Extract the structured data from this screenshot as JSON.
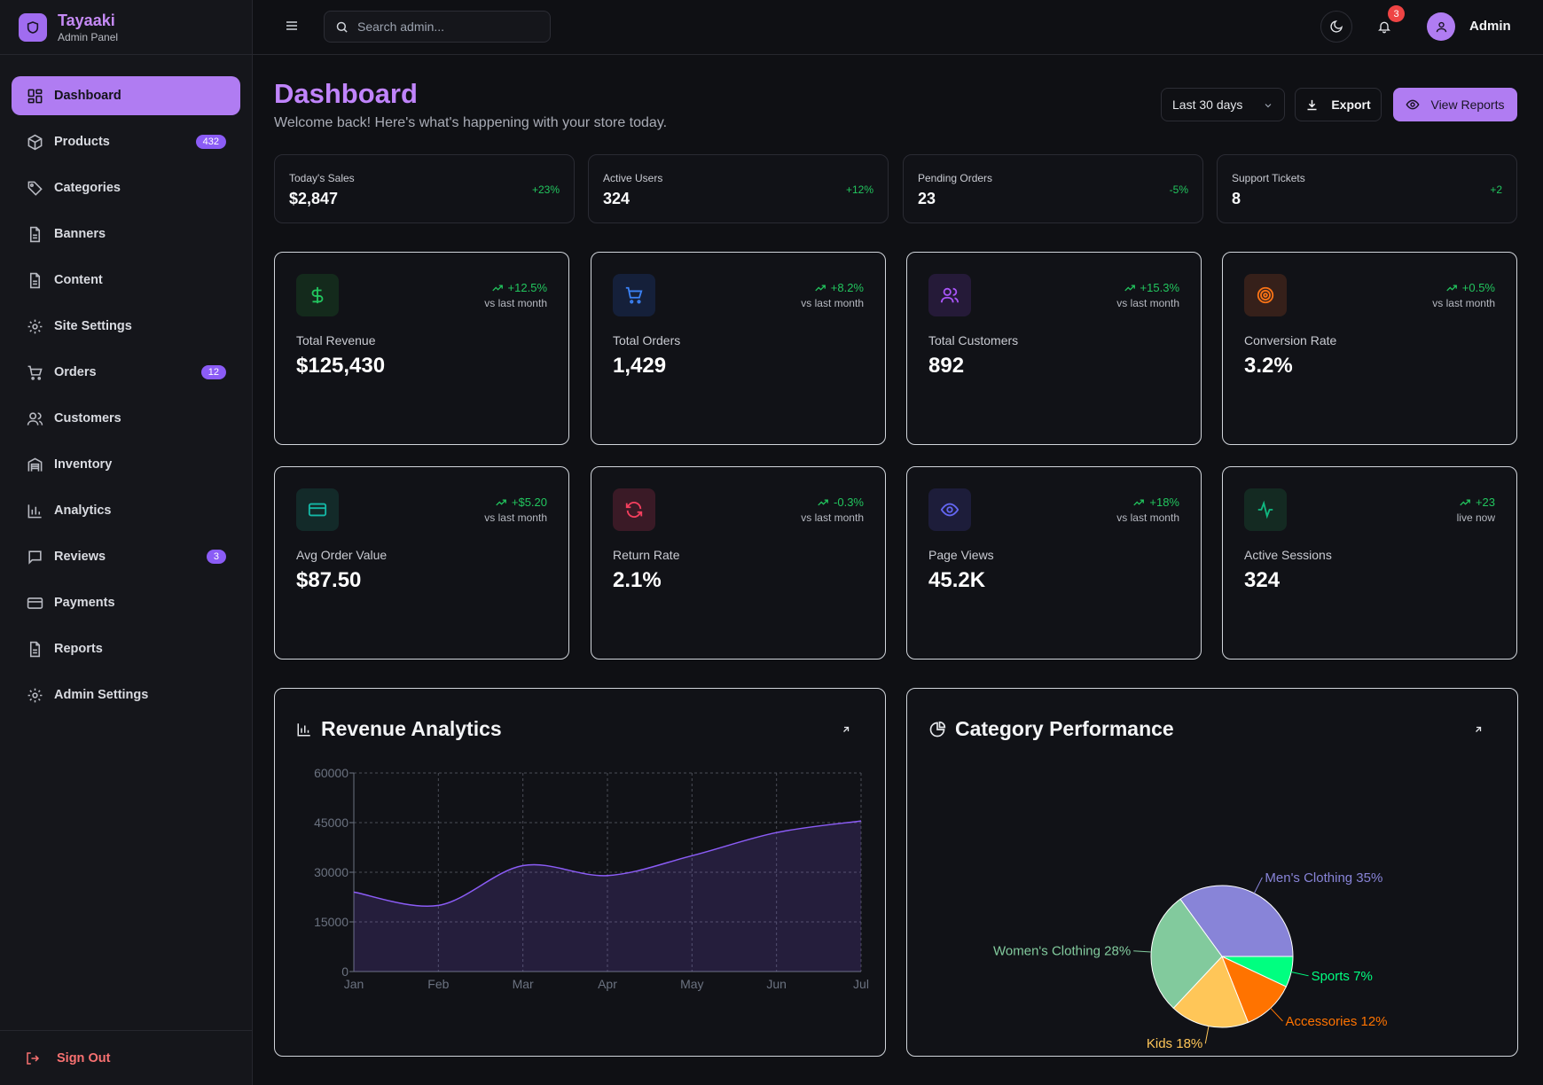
{
  "brand": {
    "name": "Tayaaki",
    "subtitle": "Admin Panel"
  },
  "sidebar": {
    "items": [
      {
        "label": "Dashboard",
        "icon": "dashboard-icon",
        "active": true
      },
      {
        "label": "Products",
        "icon": "box-icon",
        "badge": "432"
      },
      {
        "label": "Categories",
        "icon": "tags-icon"
      },
      {
        "label": "Banners",
        "icon": "document-icon"
      },
      {
        "label": "Content",
        "icon": "document-icon"
      },
      {
        "label": "Site Settings",
        "icon": "gear-icon"
      },
      {
        "label": "Orders",
        "icon": "cart-icon",
        "badge": "12"
      },
      {
        "label": "Customers",
        "icon": "users-icon"
      },
      {
        "label": "Inventory",
        "icon": "warehouse-icon"
      },
      {
        "label": "Analytics",
        "icon": "bar-chart-icon"
      },
      {
        "label": "Reviews",
        "icon": "message-icon",
        "badge": "3"
      },
      {
        "label": "Payments",
        "icon": "credit-card-icon"
      },
      {
        "label": "Reports",
        "icon": "document-icon"
      },
      {
        "label": "Admin Settings",
        "icon": "gear-icon"
      }
    ],
    "signout": "Sign Out"
  },
  "topbar": {
    "search_placeholder": "Search admin...",
    "notification_count": "3",
    "user_name": "Admin"
  },
  "page": {
    "title": "Dashboard",
    "subtitle": "Welcome back! Here's what's happening with your store today.",
    "date_range": "Last 30 days",
    "export_label": "Export",
    "view_reports_label": "View Reports"
  },
  "stats": [
    {
      "label": "Today's Sales",
      "value": "$2,847",
      "change": "+23%"
    },
    {
      "label": "Active Users",
      "value": "324",
      "change": "+12%"
    },
    {
      "label": "Pending Orders",
      "value": "23",
      "change": "-5%"
    },
    {
      "label": "Support Tickets",
      "value": "8",
      "change": "+2"
    }
  ],
  "kpis": [
    {
      "label": "Total Revenue",
      "value": "$125,430",
      "trend": "+12.5%",
      "trend_sub": "vs last month",
      "icon": "dollar-icon",
      "color": "#22c55e"
    },
    {
      "label": "Total Orders",
      "value": "1,429",
      "trend": "+8.2%",
      "trend_sub": "vs last month",
      "icon": "cart-icon",
      "color": "#3b82f6"
    },
    {
      "label": "Total Customers",
      "value": "892",
      "trend": "+15.3%",
      "trend_sub": "vs last month",
      "icon": "users-icon",
      "color": "#a855f7"
    },
    {
      "label": "Conversion Rate",
      "value": "3.2%",
      "trend": "+0.5%",
      "trend_sub": "vs last month",
      "icon": "target-icon",
      "color": "#f97316"
    },
    {
      "label": "Avg Order Value",
      "value": "$87.50",
      "trend": "+$5.20",
      "trend_sub": "vs last month",
      "icon": "credit-card-icon",
      "color": "#14b8a6"
    },
    {
      "label": "Return Rate",
      "value": "2.1%",
      "trend": "-0.3%",
      "trend_sub": "vs last month",
      "icon": "refresh-icon",
      "color": "#f43f5e"
    },
    {
      "label": "Page Views",
      "value": "45.2K",
      "trend": "+18%",
      "trend_sub": "vs last month",
      "icon": "eye-icon",
      "color": "#6366f1"
    },
    {
      "label": "Active Sessions",
      "value": "324",
      "trend": "+23",
      "trend_sub": "live now",
      "icon": "activity-icon",
      "color": "#10b981"
    }
  ],
  "panels": {
    "revenue_title": "Revenue Analytics",
    "category_title": "Category Performance"
  },
  "chart_data": [
    {
      "type": "area",
      "title": "Revenue Analytics",
      "categories": [
        "Jan",
        "Feb",
        "Mar",
        "Apr",
        "May",
        "Jun",
        "Jul"
      ],
      "series": [
        {
          "values": [
            24000,
            20000,
            32000,
            29000,
            35000,
            42000,
            45500
          ]
        }
      ],
      "yticks": [
        0,
        15000,
        30000,
        45000,
        60000
      ],
      "ylim": [
        0,
        60000
      ],
      "grid": true,
      "color": "#8b5cf6"
    },
    {
      "type": "pie",
      "title": "Category Performance",
      "slices": [
        {
          "label": "Men's Clothing",
          "value": 35,
          "color": "#8884d8"
        },
        {
          "label": "Sports",
          "value": 7,
          "color": "#00ff80"
        },
        {
          "label": "Accessories",
          "value": 12,
          "color": "#ff7300"
        },
        {
          "label": "Kids",
          "value": 18,
          "color": "#ffc658"
        },
        {
          "label": "Women's Clothing",
          "value": 28,
          "color": "#82ca9d"
        }
      ]
    }
  ]
}
